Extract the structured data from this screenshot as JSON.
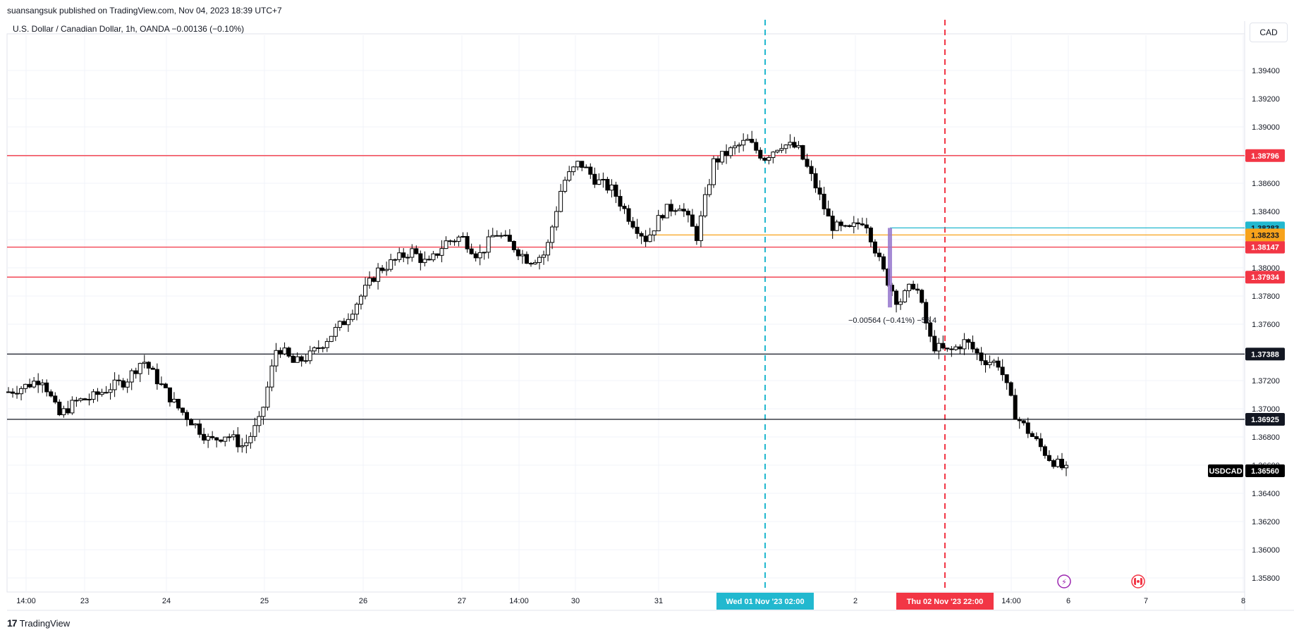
{
  "header": {
    "published": "suansangsuk published on TradingView.com, Nov 04, 2023 18:39 UTC+7",
    "symbol_info": "U.S. Dollar / Canadian Dollar, 1h, OANDA  −0.00136 (−0.10%)",
    "currency": "CAD"
  },
  "footer": {
    "brand": "TradingView",
    "logo": "17"
  },
  "colors": {
    "up": "#ffffff",
    "down": "#000000",
    "red_line": "#f23645",
    "black_line": "#131722",
    "cyan": "#22b8cf",
    "orange": "#f7a21b",
    "purple": "#9575cd",
    "grid": "#f0f3fa"
  },
  "chart_data": {
    "type": "candlestick",
    "symbol": "USDCAD",
    "timeframe": "1h",
    "last_price": 1.3656,
    "ylim": [
      1.357,
      1.3965
    ],
    "y_ticks": [
      1.358,
      1.36,
      1.362,
      1.364,
      1.366,
      1.368,
      1.37,
      1.372,
      1.374,
      1.376,
      1.378,
      1.38,
      1.382,
      1.384,
      1.386,
      1.388,
      1.39,
      1.392,
      1.394
    ],
    "y_tick_labels": [
      "1.35800",
      "1.36000",
      "1.36200",
      "1.36400",
      "1.36600",
      "1.36800",
      "1.37000",
      "1.37200",
      "1.37400",
      "1.37600",
      "1.37800",
      "1.38000",
      "1.38200",
      "1.38400",
      "1.38600",
      "1.38800",
      "1.39000",
      "1.39200",
      "1.39400"
    ],
    "x_tick_labels": [
      "14:00",
      "23",
      "24",
      "25",
      "26",
      "27",
      "14:00",
      "30",
      "31",
      "2",
      "14:00",
      "6",
      "7",
      "8"
    ],
    "horizontal_levels": [
      {
        "price": 1.38796,
        "label": "1.38796",
        "color": "#f23645"
      },
      {
        "price": 1.38147,
        "label": "1.38147",
        "color": "#f23645"
      },
      {
        "price": 1.37934,
        "label": "1.37934",
        "color": "#f23645"
      },
      {
        "price": 1.37388,
        "label": "1.37388",
        "color": "#131722"
      },
      {
        "price": 1.36925,
        "label": "1.36925",
        "color": "#131722"
      }
    ],
    "partial_levels": [
      {
        "price": 1.38283,
        "label": "1.38283",
        "color": "#22b8cf",
        "from_date": "Nov 02 ~06:00"
      },
      {
        "price": 1.38233,
        "label": "1.38233",
        "color": "#f7a21b",
        "from_date": "Oct 31 ~03:00"
      }
    ],
    "vertical_markers": [
      {
        "label": "Wed 01 Nov '23   02:00",
        "color": "#22b8cf"
      },
      {
        "label": "Thu 02 Nov '23   22:00",
        "color": "#f23645"
      }
    ],
    "measure": {
      "from": 1.38283,
      "to": 1.37719,
      "label": "−0.00564 (−0.41%) −56.4"
    },
    "price_tag": {
      "symbol": "USDCAD",
      "value": "1.36560"
    },
    "ohlc_anchor_closes": [
      1.3712,
      1.3716,
      1.3722,
      1.3695,
      1.3705,
      1.3708,
      1.3715,
      1.372,
      1.3735,
      1.3718,
      1.3702,
      1.369,
      1.3677,
      1.3682,
      1.3673,
      1.3692,
      1.3745,
      1.3732,
      1.3738,
      1.375,
      1.3762,
      1.378,
      1.3798,
      1.3805,
      1.3812,
      1.3802,
      1.3818,
      1.3822,
      1.3808,
      1.3825,
      1.3816,
      1.3805,
      1.381,
      1.386,
      1.3875,
      1.3862,
      1.3855,
      1.3835,
      1.382,
      1.384,
      1.3845,
      1.3822,
      1.3875,
      1.3883,
      1.389,
      1.3878,
      1.3888,
      1.3885,
      1.386,
      1.383,
      1.3826,
      1.3835,
      1.38,
      1.3775,
      1.379,
      1.3745,
      1.374,
      1.3748,
      1.3735,
      1.3732,
      1.3695,
      1.368,
      1.3665,
      1.3656
    ]
  }
}
